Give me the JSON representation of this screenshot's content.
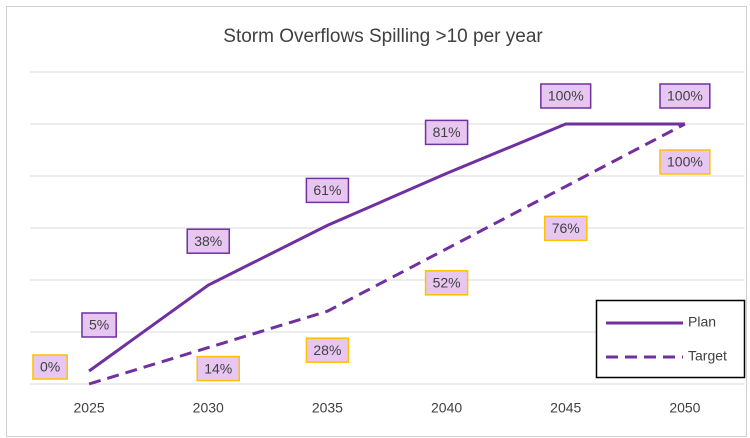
{
  "chart_data": {
    "type": "line",
    "title": "Storm Overflows Spilling >10 per year",
    "categories": [
      "2025",
      "2030",
      "2035",
      "2040",
      "2045",
      "2050"
    ],
    "series": [
      {
        "name": "Plan",
        "color": "#7030a0",
        "dash": false,
        "label_border": "#7030a0",
        "values": [
          5,
          38,
          61,
          81,
          100,
          100
        ],
        "value_labels": [
          "5%",
          "38%",
          "61%",
          "81%",
          "100%",
          "100%"
        ]
      },
      {
        "name": "Target",
        "color": "#7030a0",
        "dash": true,
        "label_border": "#ffc000",
        "values": [
          0,
          14,
          28,
          52,
          76,
          100
        ],
        "value_labels": [
          "0%",
          "14%",
          "28%",
          "52%",
          "76%",
          "100%"
        ]
      }
    ],
    "ylim": [
      0,
      120
    ],
    "yticks": [
      0,
      20,
      40,
      60,
      80,
      100,
      120
    ],
    "grid": true,
    "legend": "lower right"
  }
}
